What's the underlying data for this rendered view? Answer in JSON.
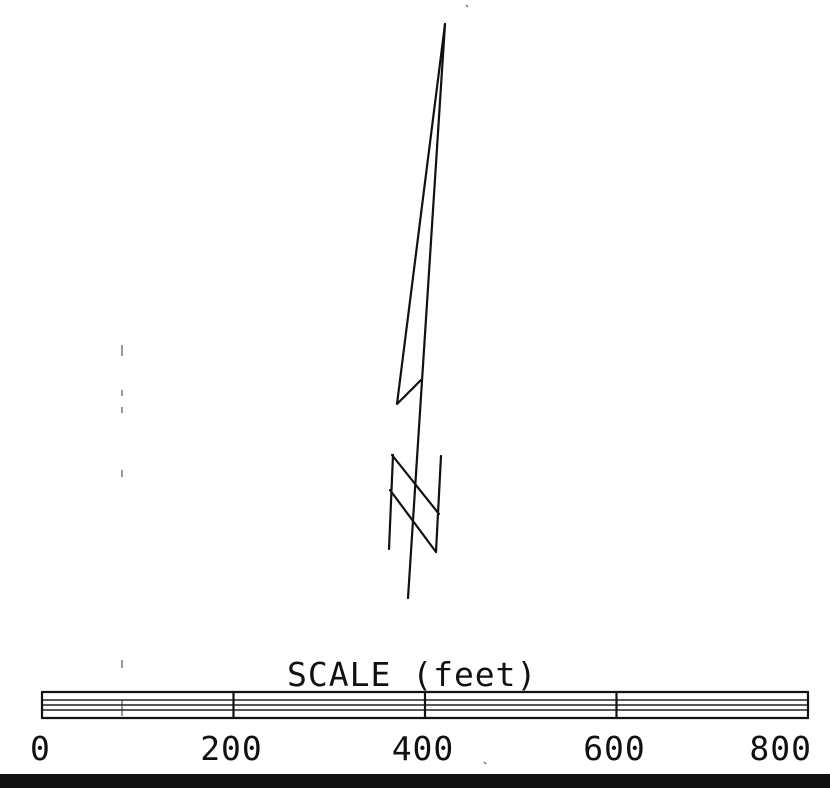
{
  "scale_bar": {
    "title": "SCALE (feet)",
    "unit": "feet",
    "min": 0,
    "max": 800,
    "ticks": [
      {
        "value": 0,
        "label": "0"
      },
      {
        "value": 200,
        "label": "200"
      },
      {
        "value": 400,
        "label": "400"
      },
      {
        "value": 600,
        "label": "600"
      },
      {
        "value": 800,
        "label": "800"
      }
    ]
  },
  "north_arrow": {
    "symbol": "north arrow with break marks"
  },
  "colors": {
    "ink": "#111111",
    "background": "#ffffff"
  }
}
